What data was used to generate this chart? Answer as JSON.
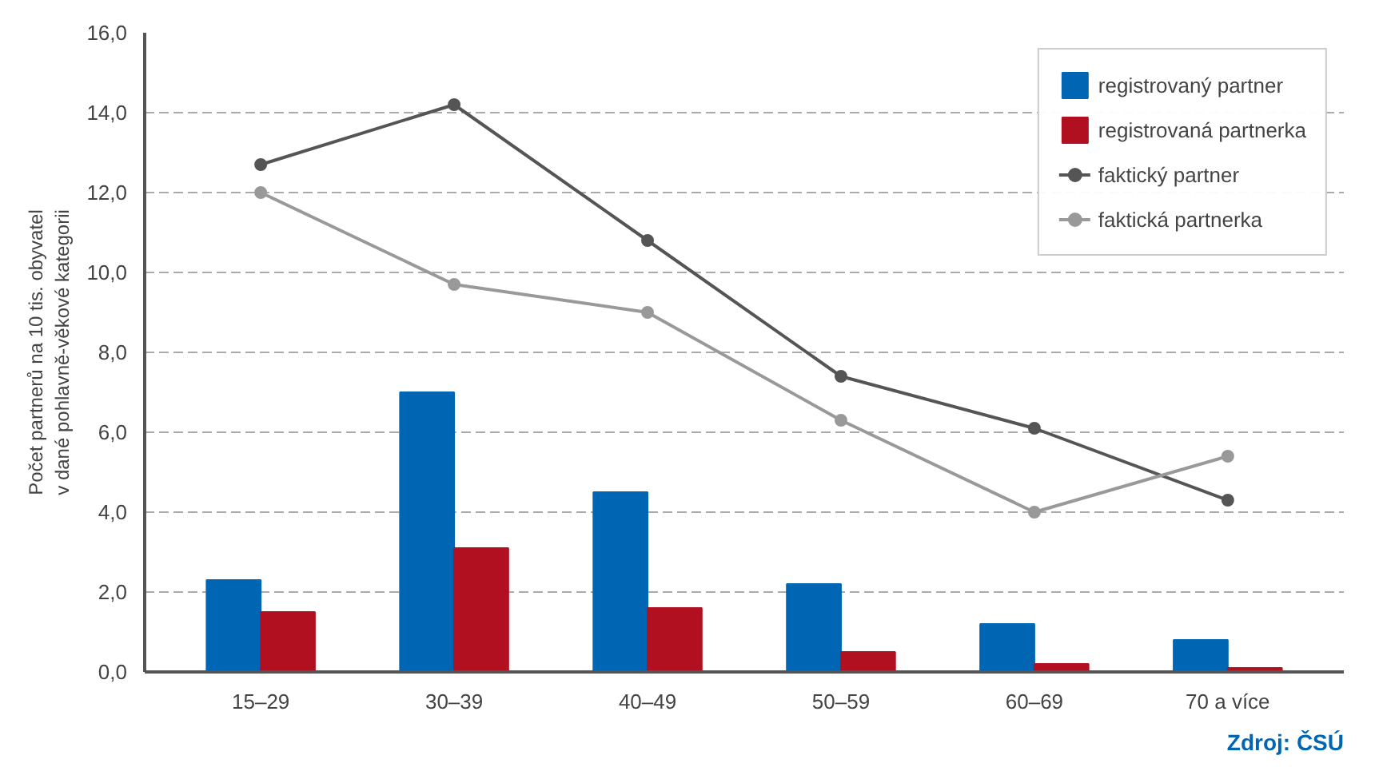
{
  "chart_data": {
    "type": "bar",
    "ylabel": "Počet partnerů na 10 tis. obyvatel\nv dané pohlavně-věkové kategorii",
    "categories": [
      "15–29",
      "30–39",
      "40–49",
      "50–59",
      "60–69",
      "70 a více"
    ],
    "series": [
      {
        "name": "registrovaný partner",
        "color": "#0066b3",
        "values": [
          2.3,
          7.0,
          4.5,
          2.2,
          1.2,
          0.8
        ]
      },
      {
        "name": "registrovaná partnerka",
        "color": "#b01020",
        "values": [
          1.5,
          3.1,
          1.6,
          0.5,
          0.2,
          0.1
        ]
      },
      {
        "name": "faktický partner",
        "type": "line",
        "color": "#555555",
        "values": [
          12.7,
          14.2,
          10.8,
          7.4,
          6.1,
          4.3
        ]
      },
      {
        "name": "faktická partnerka",
        "type": "line",
        "color": "#999999",
        "values": [
          12.0,
          9.7,
          9.0,
          6.3,
          4.0,
          5.4
        ]
      }
    ],
    "ylim": [
      0,
      16
    ],
    "yticks": [
      {
        "value": 0,
        "label": "0,0"
      },
      {
        "value": 2,
        "label": "2,0"
      },
      {
        "value": 4,
        "label": "4,0"
      },
      {
        "value": 6,
        "label": "6,0"
      },
      {
        "value": 8,
        "label": "8,0"
      },
      {
        "value": 10,
        "label": "10,0"
      },
      {
        "value": 12,
        "label": "12,0"
      },
      {
        "value": 14,
        "label": "14,0"
      },
      {
        "value": 16,
        "label": "16,0"
      }
    ],
    "grid": "y",
    "legend": "top right",
    "marker": "circle",
    "line_style": "solid",
    "annotations": [
      "Zdroj: ČSÚ"
    ]
  }
}
